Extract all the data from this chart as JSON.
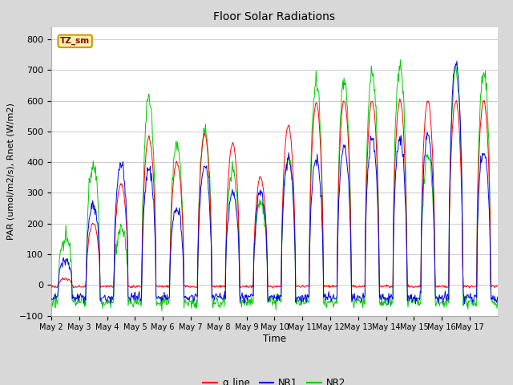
{
  "title": "Floor Solar Radiations",
  "xlabel": "Time",
  "ylabel": "PAR (umol/m2/s), Rnet (W/m2)",
  "ylim": [
    -100,
    840
  ],
  "yticks": [
    -100,
    0,
    100,
    200,
    300,
    400,
    500,
    600,
    700,
    800
  ],
  "plot_bg": "#ffffff",
  "fig_bg": "#d8d8d8",
  "grid_color": "#cccccc",
  "line_colors": {
    "q_line": "#ff0000",
    "NR1": "#0000ee",
    "NR2": "#00cc00"
  },
  "legend_label": "TZ_sm",
  "legend_box_facecolor": "#f5f0b0",
  "legend_box_edgecolor": "#cc9900",
  "n_days": 16,
  "pts_per_day": 48,
  "q_peaks": [
    20,
    200,
    330,
    480,
    400,
    490,
    460,
    350,
    520,
    590,
    600,
    600,
    600,
    600,
    600,
    600
  ],
  "nr1_peaks": [
    80,
    260,
    400,
    380,
    250,
    390,
    300,
    305,
    415,
    410,
    450,
    480,
    480,
    490,
    730,
    440
  ],
  "nr2_peaks": [
    150,
    390,
    180,
    605,
    455,
    500,
    370,
    270,
    415,
    660,
    670,
    700,
    710,
    420,
    700,
    695
  ],
  "day_start": 0.25,
  "day_end": 0.75,
  "q_night": -5,
  "nr1_night": -40,
  "nr2_night": -55
}
